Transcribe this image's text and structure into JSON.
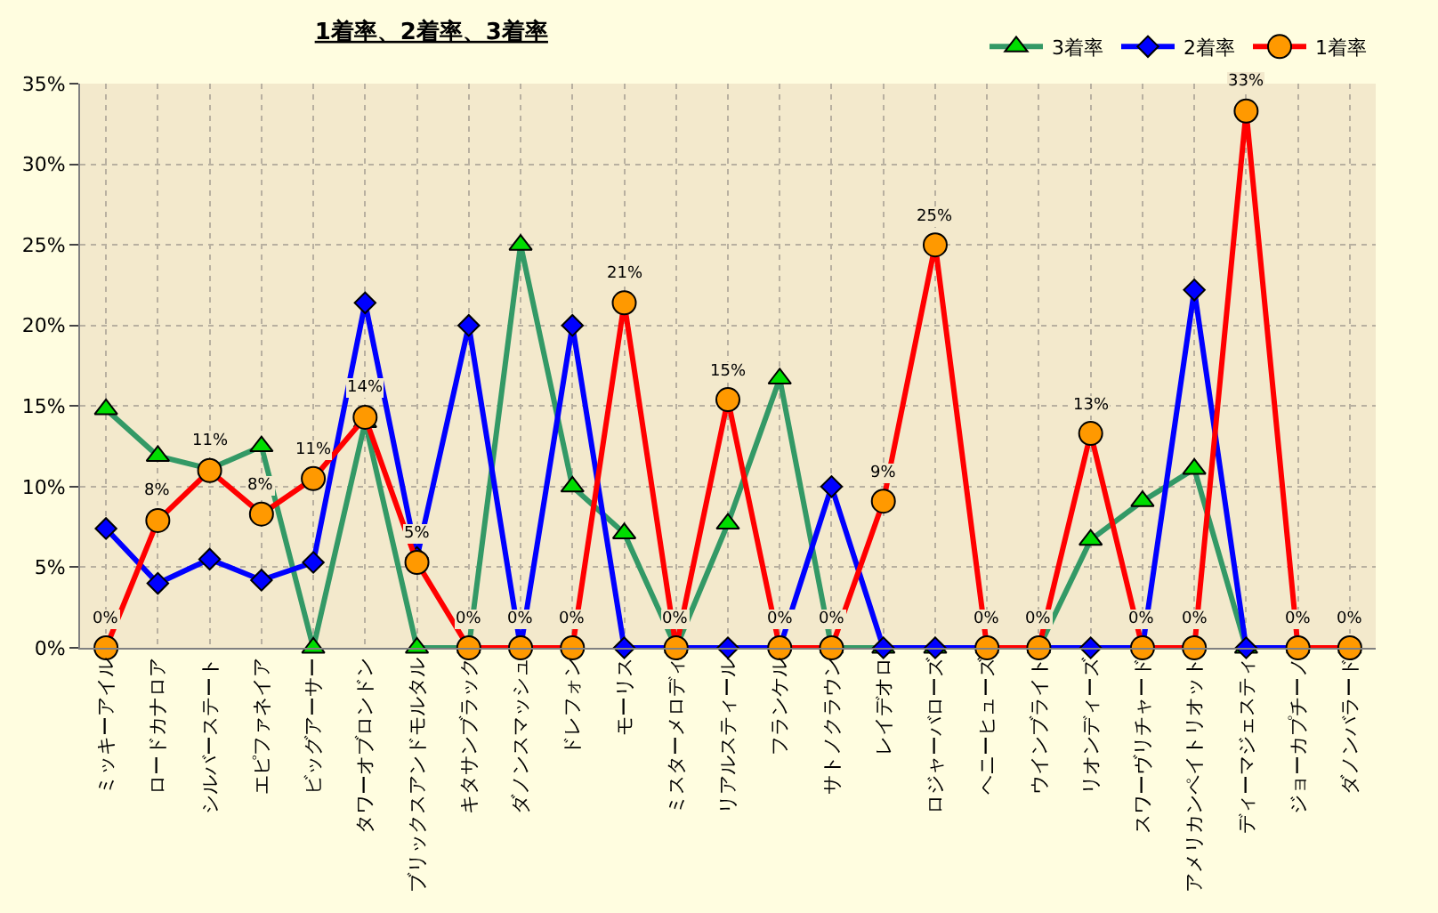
{
  "chart_data": {
    "type": "line",
    "title": "1着率、2着率、3着率",
    "categories": [
      "ミッキーアイル",
      "ロードカナロア",
      "シルバーステート",
      "エピファネイア",
      "ビッグアーサー",
      "タワーオブロンドン",
      "ブリックスアンドモルタル",
      "キタサンブラック",
      "ダノンスマッシュ",
      "ドレフォン",
      "モーリス",
      "ミスターメロディ",
      "リアルスティール",
      "フランケル",
      "サトノクラウン",
      "レイデオロ",
      "ロジャーバローズ",
      "ヘニーヒューズ",
      "ウインブライト",
      "リオンディーズ",
      "スワーヴリチャード",
      "アメリカンペイトリオット",
      "ディーマジェスティ",
      "ジョーカプチーノ",
      "ダノンバラード"
    ],
    "series": [
      {
        "name": "3着率",
        "color": "#339966",
        "marker": "triangle",
        "values": [
          14.8,
          11.9,
          11.1,
          12.5,
          0,
          14.0,
          0,
          0,
          25.0,
          10.0,
          7.1,
          0,
          7.7,
          16.7,
          0,
          0,
          0,
          0,
          0,
          6.7,
          9.1,
          11.1,
          0,
          0,
          0
        ]
      },
      {
        "name": "2着率",
        "color": "#0000ff",
        "marker": "diamond",
        "values": [
          7.4,
          4.0,
          5.5,
          4.2,
          5.3,
          21.4,
          5.6,
          20.0,
          0,
          20.0,
          0,
          0,
          0,
          0,
          10.0,
          0,
          0,
          0,
          0,
          0,
          0,
          22.2,
          0,
          0,
          0
        ]
      },
      {
        "name": "1着率",
        "color": "#ff0000",
        "marker": "circle",
        "values": [
          0,
          7.9,
          11.0,
          8.3,
          10.5,
          14.3,
          5.3,
          0,
          0,
          0,
          21.4,
          0,
          15.4,
          0,
          0,
          9.1,
          25.0,
          0,
          0,
          13.3,
          0,
          0,
          33.3,
          0,
          0
        ],
        "value_labels": [
          "0%",
          "8%",
          "11%",
          "8%",
          "11%",
          "14%",
          "5%",
          "0%",
          "0%",
          "0%",
          "21%",
          "0%",
          "15%",
          "0%",
          "0%",
          "9%",
          "25%",
          "0%",
          "0%",
          "13%",
          "0%",
          "0%",
          "33%",
          "0%",
          "0%"
        ]
      }
    ],
    "ylim": [
      0,
      35
    ],
    "yticks": [
      {
        "value": 0,
        "label": "0%"
      },
      {
        "value": 5,
        "label": "5%"
      },
      {
        "value": 10,
        "label": "10%"
      },
      {
        "value": 15,
        "label": "15%"
      },
      {
        "value": 20,
        "label": "20%"
      },
      {
        "value": 25,
        "label": "25%"
      },
      {
        "value": 30,
        "label": "30%"
      },
      {
        "value": 35,
        "label": "35%"
      }
    ],
    "grid": true,
    "legend": "top right",
    "line_style": "solid"
  }
}
